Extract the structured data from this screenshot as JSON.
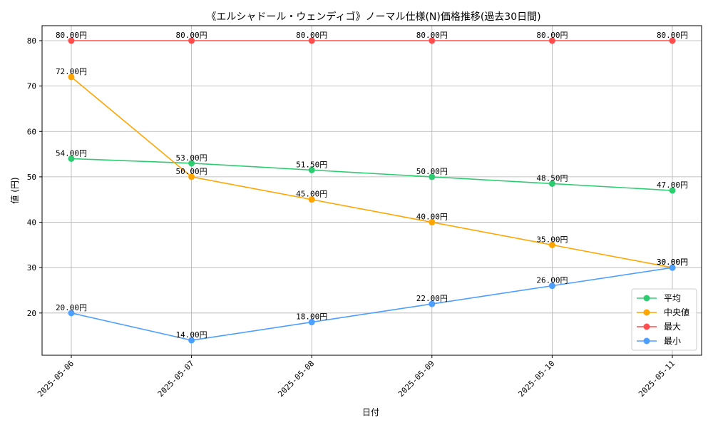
{
  "chart_data": {
    "type": "line",
    "title": "《エルシャドール・ウェンディゴ》ノーマル仕様(N)価格推移(過去30日間)",
    "xlabel": "日付",
    "ylabel": "値 (円)",
    "categories": [
      "2025-05-06",
      "2025-05-07",
      "2025-05-08",
      "2025-05-09",
      "2025-05-10",
      "2025-05-11"
    ],
    "ylim": [
      10.7,
      83.3
    ],
    "yticks": [
      "20",
      "30",
      "40",
      "50",
      "60",
      "70",
      "80"
    ],
    "grid": true,
    "legend_position": "lower-right",
    "value_suffix": "円",
    "series": [
      {
        "name": "平均",
        "color": "#2ecc71",
        "values": [
          54.0,
          53.0,
          51.5,
          50.0,
          48.5,
          47.0
        ],
        "labels": [
          "54.00円",
          "53.00円",
          "51.50円",
          "50.00円",
          "48.50円",
          "47.00円"
        ]
      },
      {
        "name": "中央値",
        "color": "#ffa500",
        "values": [
          72.0,
          50.0,
          45.0,
          40.0,
          35.0,
          30.0
        ],
        "labels": [
          "72.00円",
          "50.00円",
          "45.00円",
          "40.00円",
          "35.00円",
          "30.00円"
        ]
      },
      {
        "name": "最大",
        "color": "#ff4d4d",
        "values": [
          80.0,
          80.0,
          80.0,
          80.0,
          80.0,
          80.0
        ],
        "labels": [
          "80.00円",
          "80.00円",
          "80.00円",
          "80.00円",
          "80.00円",
          "80.00円"
        ]
      },
      {
        "name": "最小",
        "color": "#4d9fff",
        "values": [
          20.0,
          14.0,
          18.0,
          22.0,
          26.0,
          30.0
        ],
        "labels": [
          "20.00円",
          "14.00円",
          "18.00円",
          "22.00円",
          "26.00円",
          "30.00円"
        ]
      }
    ]
  }
}
